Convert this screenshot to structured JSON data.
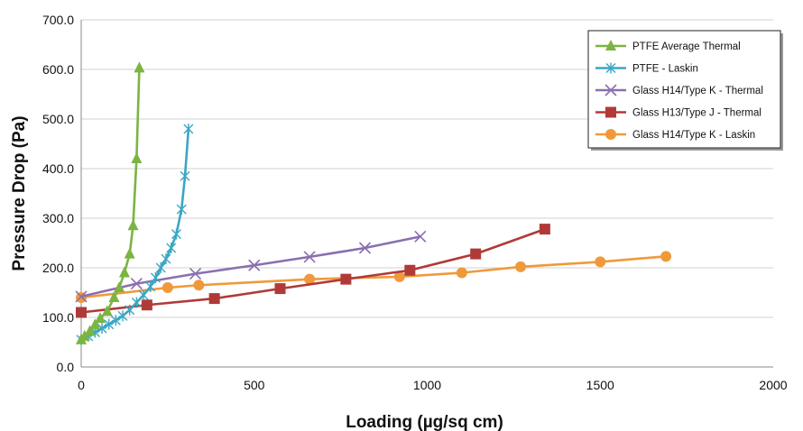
{
  "chart_data": {
    "type": "line",
    "xlabel": "Loading (µg/sq cm)",
    "ylabel": "Pressure Drop (Pa)",
    "xlim": [
      0,
      2000
    ],
    "ylim": [
      0,
      700
    ],
    "xticks": [
      "0",
      "500",
      "1000",
      "1500",
      "2000"
    ],
    "xtick_values": [
      0,
      500,
      1000,
      1500,
      2000
    ],
    "yticks": [
      "0.0",
      "100.0",
      "200.0",
      "300.0",
      "400.0",
      "500.0",
      "600.0",
      "700.0"
    ],
    "ytick_values": [
      0,
      100,
      200,
      300,
      400,
      500,
      600,
      700
    ],
    "grid": "horizontal",
    "legend_position": "top-right",
    "series": [
      {
        "name": "PTFE Average Thermal",
        "color": "#7bb442",
        "marker": "triangle",
        "points": [
          [
            0,
            55
          ],
          [
            10,
            62
          ],
          [
            25,
            72
          ],
          [
            40,
            85
          ],
          [
            55,
            98
          ],
          [
            75,
            112
          ],
          [
            95,
            140
          ],
          [
            110,
            160
          ],
          [
            125,
            190
          ],
          [
            140,
            228
          ],
          [
            150,
            285
          ],
          [
            160,
            420
          ],
          [
            168,
            603
          ]
        ]
      },
      {
        "name": "PTFE - Laskin",
        "color": "#3aa6c4",
        "marker": "star",
        "points": [
          [
            0,
            55
          ],
          [
            20,
            62
          ],
          [
            40,
            70
          ],
          [
            60,
            78
          ],
          [
            80,
            86
          ],
          [
            100,
            94
          ],
          [
            120,
            103
          ],
          [
            140,
            115
          ],
          [
            160,
            130
          ],
          [
            180,
            145
          ],
          [
            200,
            162
          ],
          [
            215,
            180
          ],
          [
            230,
            200
          ],
          [
            245,
            218
          ],
          [
            260,
            240
          ],
          [
            275,
            268
          ],
          [
            290,
            318
          ],
          [
            300,
            385
          ],
          [
            310,
            480
          ]
        ]
      },
      {
        "name": "Glass H14/Type K - Thermal",
        "color": "#8a6fb0",
        "marker": "x",
        "points": [
          [
            0,
            142
          ],
          [
            160,
            168
          ],
          [
            330,
            188
          ],
          [
            500,
            205
          ],
          [
            660,
            222
          ],
          [
            820,
            240
          ],
          [
            980,
            263
          ]
        ]
      },
      {
        "name": "Glass H13/Type J - Thermal",
        "color": "#b03a38",
        "marker": "square",
        "points": [
          [
            0,
            110
          ],
          [
            190,
            125
          ],
          [
            385,
            138
          ],
          [
            575,
            158
          ],
          [
            765,
            177
          ],
          [
            950,
            195
          ],
          [
            1140,
            228
          ],
          [
            1340,
            278
          ]
        ]
      },
      {
        "name": "Glass H14/Type K - Laskin",
        "color": "#f0993a",
        "marker": "circle",
        "points": [
          [
            0,
            140
          ],
          [
            250,
            160
          ],
          [
            340,
            165
          ],
          [
            660,
            177
          ],
          [
            920,
            182
          ],
          [
            1100,
            190
          ],
          [
            1270,
            202
          ],
          [
            1500,
            212
          ],
          [
            1690,
            223
          ]
        ]
      }
    ]
  }
}
